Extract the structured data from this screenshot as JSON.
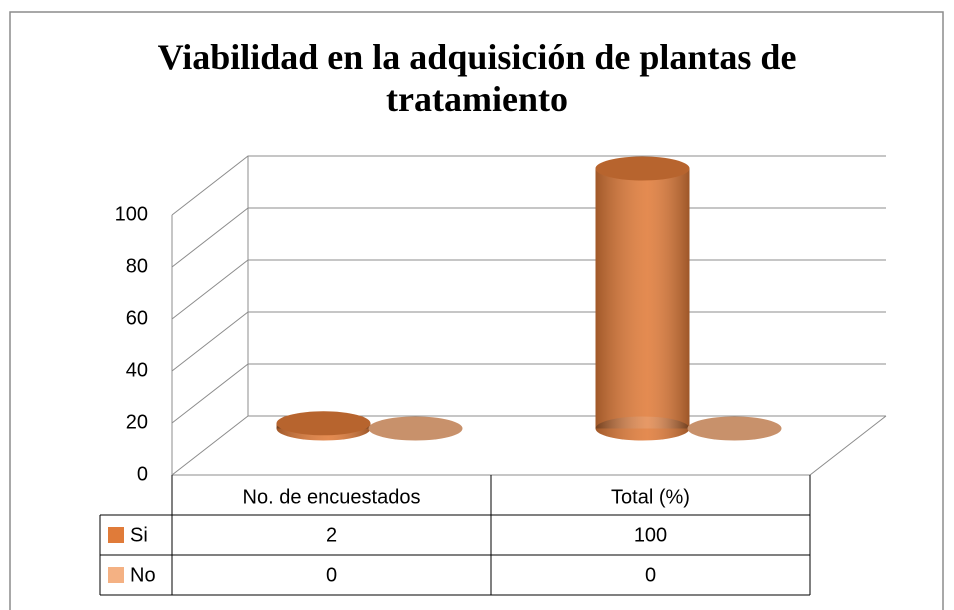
{
  "chart_data": {
    "type": "bar3d",
    "title": "Viabilidad en la adquisición de plantas de tratamiento",
    "categories": [
      "No. de encuestados",
      "Total (%)"
    ],
    "series": [
      {
        "name": "Si",
        "color": "#e07b39",
        "values": [
          2,
          100
        ]
      },
      {
        "name": "No",
        "color": "#f4b183",
        "values": [
          0,
          0
        ]
      }
    ],
    "ylim": [
      0,
      100
    ],
    "yticks": [
      0,
      20,
      40,
      60,
      80,
      100
    ],
    "grid": true
  }
}
